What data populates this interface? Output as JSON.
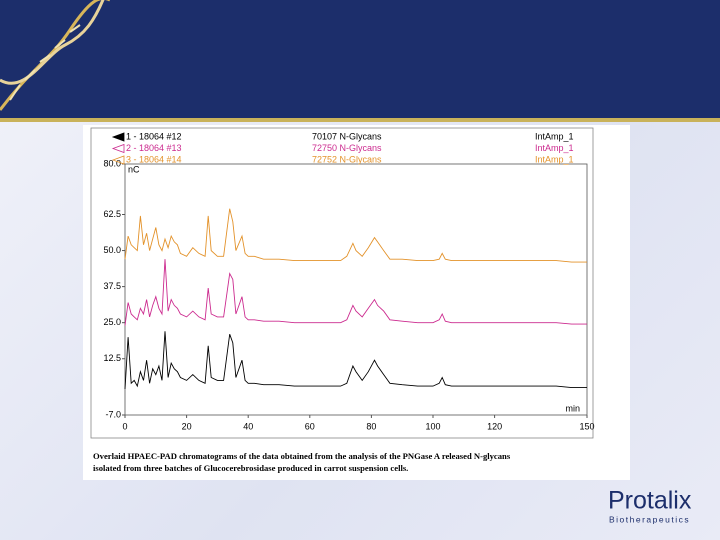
{
  "chart_data": {
    "type": "line",
    "x": [
      0,
      1,
      2,
      3,
      4,
      5,
      6,
      7,
      8,
      9,
      10,
      11,
      12,
      13,
      14,
      15,
      16,
      17,
      18,
      20,
      22,
      24,
      26,
      27,
      28,
      30,
      32,
      34,
      35,
      36,
      38,
      39,
      40,
      42,
      45,
      50,
      55,
      60,
      65,
      70,
      72,
      74,
      75,
      77,
      79,
      81,
      82,
      84,
      86,
      90,
      95,
      100,
      102,
      103,
      104,
      106,
      110,
      120,
      130,
      140,
      145,
      150
    ],
    "xlim": [
      0,
      150
    ],
    "xticks": [
      0,
      20,
      40,
      60,
      80,
      100,
      120,
      150
    ],
    "ylim": [
      -7,
      80
    ],
    "yticks": [
      {
        "value": -7,
        "label": "-7.0"
      },
      {
        "value": 12.5,
        "label": "12.5"
      },
      {
        "value": 25,
        "label": "25.0"
      },
      {
        "value": 37.5,
        "label": "37.5"
      },
      {
        "value": 50,
        "label": "50.0"
      },
      {
        "value": 62.5,
        "label": "62.5"
      },
      {
        "value": 80,
        "label": "80.0"
      }
    ],
    "y_label": "nC",
    "x_label": "min",
    "series": [
      {
        "name": "1 - 18064 #12",
        "sample": "70107 N-Glycans",
        "signal": "IntAmp_1",
        "color": "#000000",
        "values": [
          2,
          20,
          4,
          5,
          3,
          8,
          5,
          12,
          4,
          9,
          7,
          10,
          5,
          22,
          6,
          11,
          9,
          8,
          6,
          5,
          7,
          5,
          4,
          17,
          6,
          5,
          5,
          21,
          18,
          6,
          12,
          5,
          4,
          4,
          3.5,
          3.5,
          3,
          3,
          3,
          3,
          4,
          10,
          8,
          5,
          8,
          12,
          10,
          7,
          4,
          3.5,
          3,
          3,
          4,
          6,
          3.5,
          3,
          3,
          3,
          3,
          3,
          2.5,
          2.5
        ]
      },
      {
        "name": "2 - 18064 #13",
        "sample": "72750 N-Glycans",
        "signal": "IntAmp_1",
        "color": "#cc2b8f",
        "values": [
          24,
          32,
          28,
          27,
          26,
          30,
          28,
          33,
          27,
          31,
          34,
          30,
          28,
          47,
          29,
          33,
          31,
          30,
          28,
          27,
          29,
          27,
          26,
          37,
          28,
          27,
          27,
          42,
          40,
          28,
          34,
          27,
          26,
          26,
          25.5,
          25.5,
          25,
          25,
          25,
          25,
          26,
          31,
          29,
          27,
          30,
          33,
          31,
          29,
          26,
          25.5,
          25,
          25,
          26,
          28,
          25.5,
          25,
          25,
          25,
          25,
          25,
          24.5,
          24.5
        ]
      },
      {
        "name": "3 - 18064 #14",
        "sample": "72752 N-Glycans",
        "signal": "IntAmp_1",
        "color": "#e3922a",
        "values": [
          47,
          55,
          52,
          51,
          50,
          62,
          52,
          56,
          50,
          54,
          58,
          52,
          50,
          54,
          51,
          55,
          53,
          52,
          49,
          48,
          51,
          49,
          48,
          62,
          50,
          48,
          48,
          64.5,
          60,
          50,
          55,
          49,
          48,
          48,
          47,
          47,
          46.5,
          46.5,
          46.5,
          46.5,
          48,
          52.5,
          50,
          48,
          51,
          54.5,
          53,
          50,
          47,
          47,
          46.5,
          46.5,
          47,
          49,
          47,
          46.5,
          46.5,
          46.5,
          46.5,
          46.5,
          46,
          46
        ]
      }
    ],
    "caption": [
      "Overlaid HPAEC-PAD chromatograms of the data obtained from the analysis of the PNGase A released N-glycans",
      "isolated from three batches of Glucocerebrosidase produced in carrot suspension cells."
    ]
  },
  "logo": {
    "name": "Protalix",
    "tagline": "Biotherapeutics"
  }
}
